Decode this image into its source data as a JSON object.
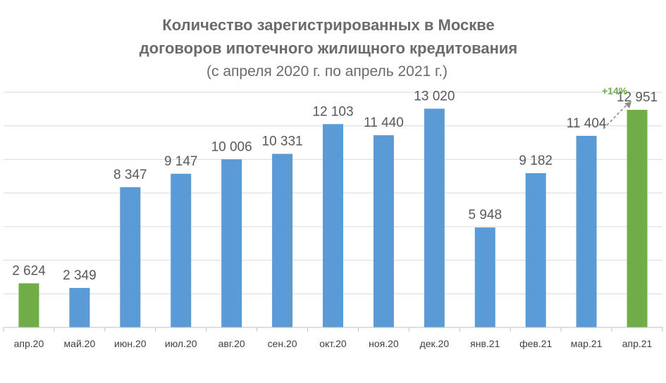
{
  "chart_data": {
    "type": "bar",
    "title_lines": [
      "Количество зарегистрированных в Москве",
      "договоров ипотечного жилищного кредитования"
    ],
    "subtitle": "(с апреля 2020 г. по апрель 2021 г.)",
    "categories": [
      "апр.20",
      "май.20",
      "июн.20",
      "июл.20",
      "авг.20",
      "сен.20",
      "окт.20",
      "ноя.20",
      "дек.20",
      "янв.21",
      "фев.21",
      "мар.21",
      "апр.21"
    ],
    "values": [
      2624,
      2349,
      8347,
      9147,
      10006,
      10331,
      12103,
      11440,
      13020,
      5948,
      9182,
      11404,
      12951
    ],
    "value_labels": [
      "2 624",
      "2 349",
      "8 347",
      "9 147",
      "10 006",
      "10 331",
      "12 103",
      "11 440",
      "13 020",
      "5 948",
      "9 182",
      "11 404",
      "12 951"
    ],
    "highlighted_categories": [
      "апр.20",
      "апр.21"
    ],
    "ylim": [
      0,
      14000
    ],
    "grid": true,
    "y_tick_labels_shown": false,
    "annotation": {
      "text": "+14%",
      "from": "мар.21",
      "to": "апр.21",
      "color": "#70ad47"
    },
    "colors": {
      "bar": "#5b9bd5",
      "highlight": "#70ad47",
      "grid": "#d9d9d9",
      "axis": "#bfbfbf"
    }
  }
}
